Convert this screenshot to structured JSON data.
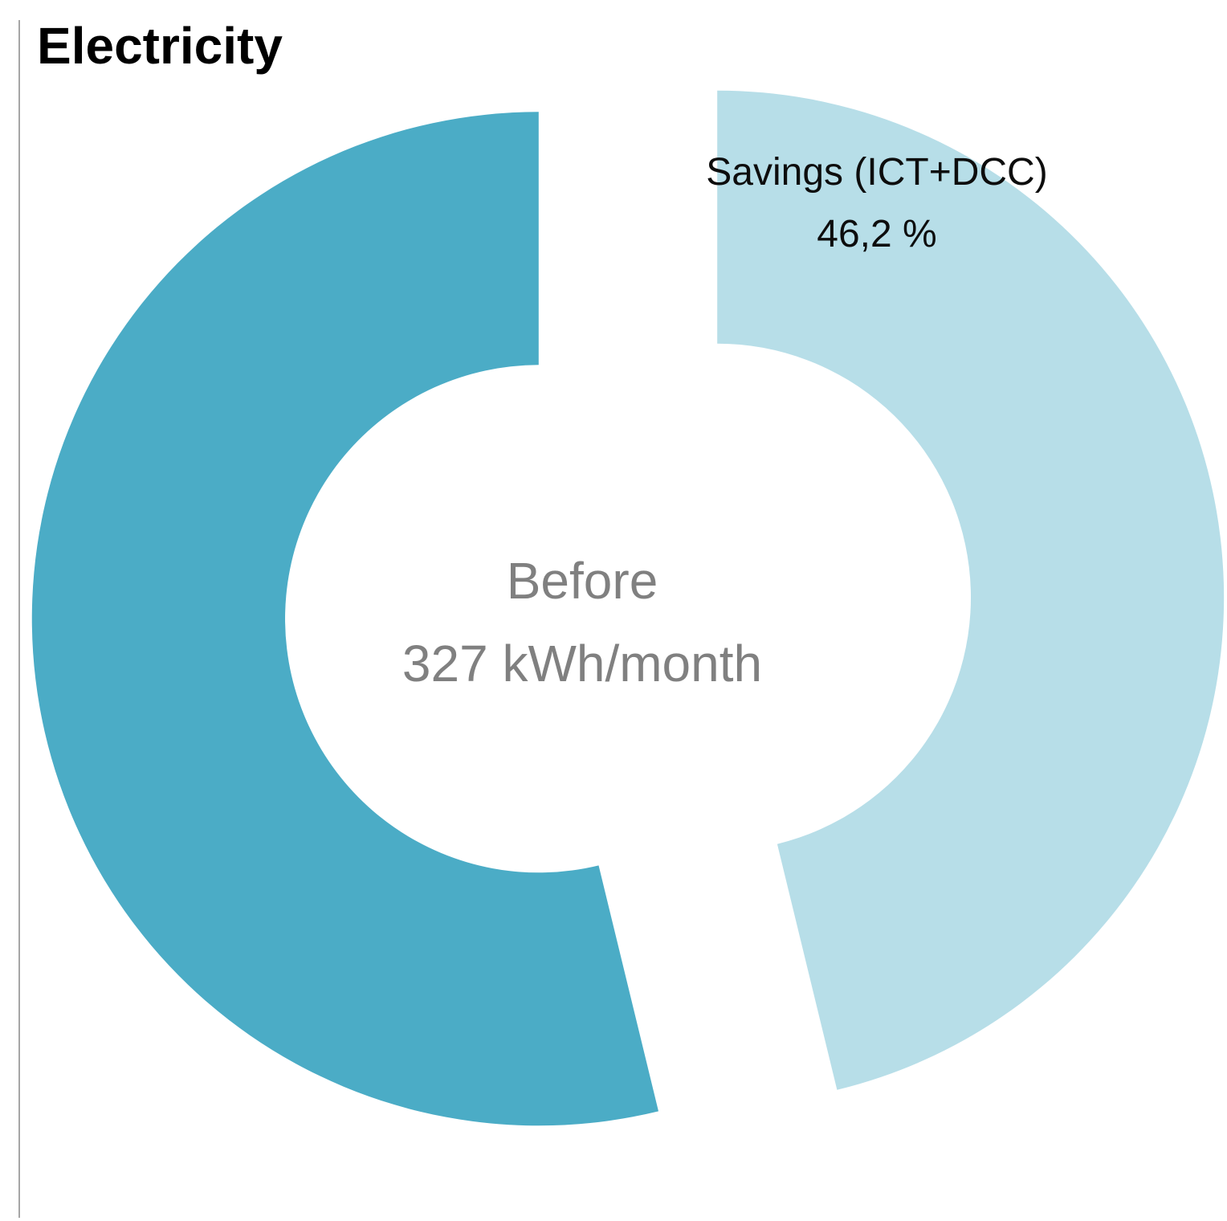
{
  "chart_data": {
    "type": "pie",
    "subtype": "exploded-doughnut",
    "title": "Electricity",
    "series": [
      {
        "name": "Savings (ICT+DCC)",
        "percent": 46.2,
        "color": "#B7DEE8"
      },
      {
        "name": "Before",
        "percent": 53.8,
        "color": "#4BACC6"
      }
    ],
    "center_label": {
      "line1": "Before",
      "line2": "327 kWh/month"
    },
    "total_before_kwh_per_month": 327,
    "savings_percent_text": "46,2 %",
    "start_angle_deg": 0,
    "direction": "clockwise",
    "hole_ratio": 0.5,
    "explode_ratio": 0.18,
    "legend": "none",
    "background": "#FFFFFF"
  },
  "annotations": {
    "savings_label": {
      "line1": "Savings (ICT+DCC)",
      "line2": "46,2 %"
    }
  },
  "decor": {
    "title_color": "#000000",
    "center_text_color": "#808080",
    "label_text_color": "#000000",
    "left_line_color": "#A6A6A6"
  }
}
